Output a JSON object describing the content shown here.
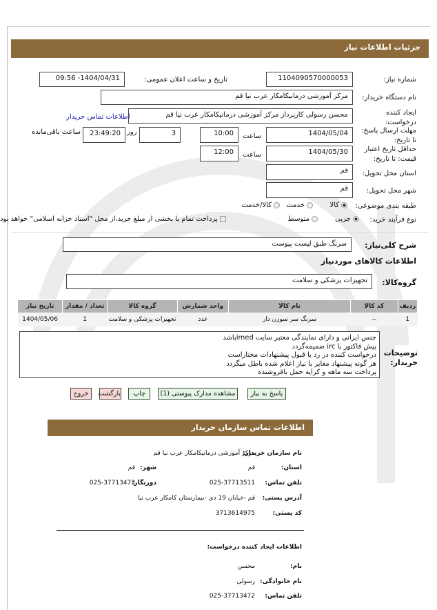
{
  "page_title": "جزئیات اطلاعات نیاز",
  "colors": {
    "header": "#8c6a3a",
    "link": "#1a1aa8",
    "ok_button": "#e3f7e3",
    "danger_button": "#f9d7d7"
  },
  "form": {
    "need_number_label": "شماره نیاز:",
    "need_number": "1104090570000053",
    "announce_label": "تاریخ و ساعت اعلان عمومی:",
    "announce_value": "1404/04/31- 09:56",
    "buyer_label": "نام دستگاه خریدار:",
    "buyer_value": "مرکز آموزشی  درمانیکامکار عرب نیا قم",
    "creator_label": "ایجاد کننده درخواست:",
    "creator_value": "محسن رسولی  کارپرداز مرکز آموزشی  درمانیکامکار عرب نیا قم",
    "contact_link": "اطلاعات تماس خریدار",
    "deadline_label": "مهلت ارسال پاسخ: تا تاریخ:",
    "deadline_date": "1404/05/04",
    "time_label": "ساعت",
    "deadline_time": "10:00",
    "days_value": "3",
    "days_label": "روز",
    "remaining_time": "23:49:20",
    "remaining_label": "ساعت باقی‌مانده",
    "validity_label": "حداقل تاریخ اعتبار قیمت: تا تاریخ:",
    "validity_date": "1404/05/30",
    "validity_time": "12:00",
    "province_label": "استان محل تحویل:",
    "province_value": "قم",
    "city_label": "شهر محل تحویل:",
    "city_value": "قم",
    "category_label": "طبقه بندی موضوعی:",
    "category_options": [
      "کالا",
      "خدمت",
      "کالا/خدمت"
    ],
    "category_selected": "کالا",
    "process_label": "نوع فرآیند خرید:",
    "process_options": [
      "جزیی",
      "متوسط"
    ],
    "process_selected": "جزیی",
    "treasury_note": "پرداخت تمام یا بخشی از مبلغ خرید،از محل \"اسناد خزانه اسلامی\" خواهد بود.",
    "summary_label": "شرح کلی‌نیاز:",
    "summary_value": "سرنگ طبق لیست پیوست",
    "goods_heading": "اطلاعات کالاهای موردنیاز",
    "group_label": "گروه‌کالا:",
    "group_value": "تجهیزات پزشکی و سلامت"
  },
  "table": {
    "headers": [
      "ردیف",
      "کد کالا",
      "نام کالا",
      "واحد شمارش",
      "گروه کالا",
      "تعداد / مقدار",
      "تاریخ نیاز"
    ],
    "rows": [
      [
        "1",
        "--",
        "سرنگ سر سوزن دار",
        "عدد",
        "تجهیزات پزشکی و سلامت",
        "1",
        "1404/05/06"
      ]
    ]
  },
  "notes": {
    "label": "توضیحات خریدار:",
    "lines": [
      "جنس ایرانی و دارای نمایندگی معتبر سایت imedباشد",
      "پیش فاکتور با irc ضمیمه‌گردد",
      "درخواست کننده در رد یا قبول پیشنهادات  مختاراست",
      "هر گونه پیشنهاد مغایر با نیاز اعلام شده باطل میگردد",
      "پرداخت سه ماهه و کرایه حمل بافروشنده"
    ]
  },
  "buttons": {
    "reply": "پاسخ به نیاز",
    "attachments": "مشاهده مدارک پیوستی (1)",
    "print": "چاپ",
    "back": "بازگشت",
    "exit": "خروج"
  },
  "contact": {
    "heading": "اطلاعات تماس سازمان خریدار",
    "org_label": "نام سازمان خریدار:",
    "org_value": "مرکز آموزشی درمانیکامکار عرب نیا قم",
    "province_label": "استان:",
    "province_value": "قم",
    "city_label": "شهر:",
    "city_value": "قم",
    "phone_label": "تلفن تماس:",
    "phone_value": "025-37713511",
    "fax_label": "دورنگار:",
    "fax_value": "025-37713473",
    "address_label": "آدرس پستی:",
    "address_value": "قم -خیابان 19 دی -بیمارستان کامکار عرب نیا",
    "postal_label": "کد پستی:",
    "postal_value": "3713614975",
    "creator_heading": "اطلاعات ایجاد کننده درخواست:",
    "name_label": "نام:",
    "name_value": "محسن",
    "family_label": "نام خانوادگی:",
    "family_value": "رسولی",
    "creator_phone_label": "تلفن تماس:",
    "creator_phone_value": "025-37713472"
  }
}
